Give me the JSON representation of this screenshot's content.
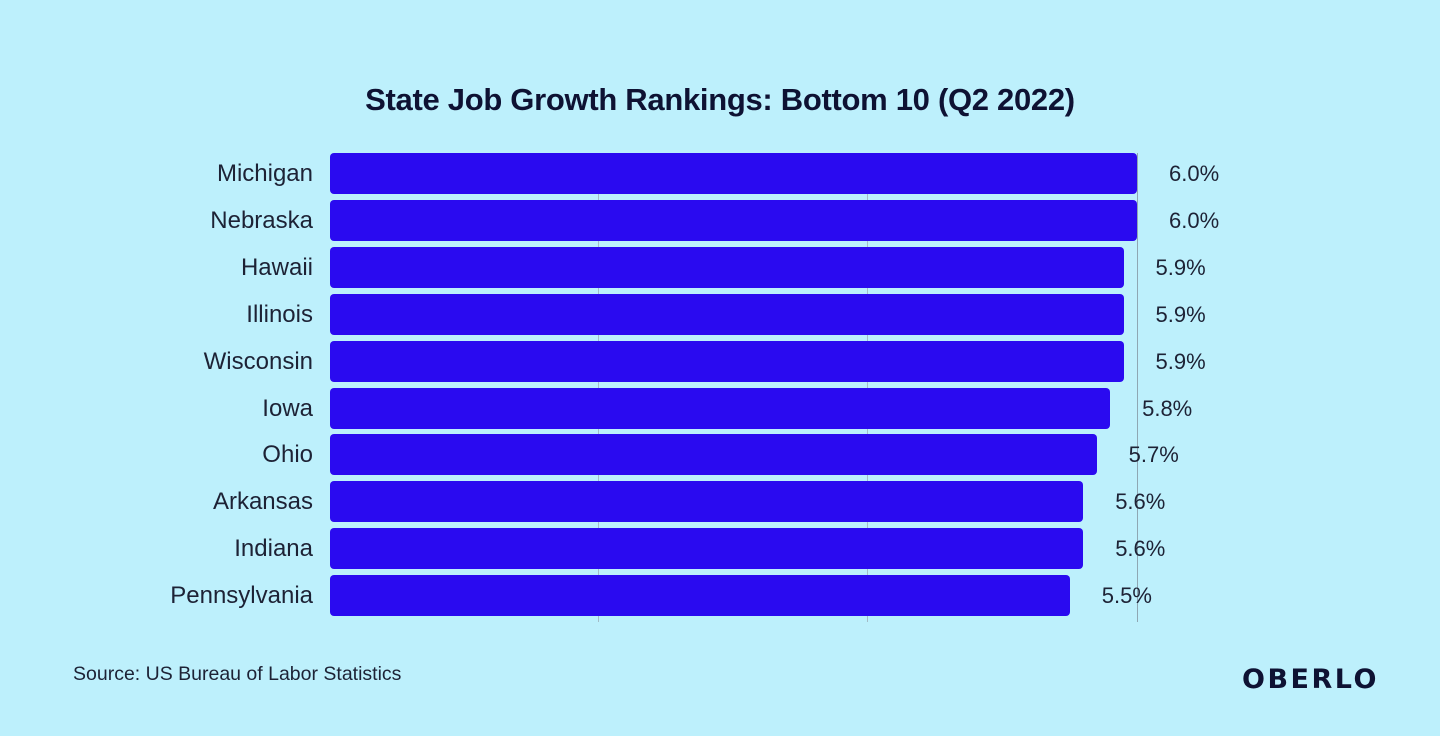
{
  "chart_data": {
    "type": "bar",
    "orientation": "horizontal",
    "title": "State Job Growth Rankings: Bottom 10 (Q2 2022)",
    "categories": [
      "Michigan",
      "Nebraska",
      "Hawaii",
      "Illinois",
      "Wisconsin",
      "Iowa",
      "Ohio",
      "Arkansas",
      "Indiana",
      "Pennsylvania"
    ],
    "values": [
      6.0,
      6.0,
      5.9,
      5.9,
      5.9,
      5.8,
      5.7,
      5.6,
      5.6,
      5.5
    ],
    "value_labels": [
      "6.0%",
      "6.0%",
      "5.9%",
      "5.9%",
      "5.9%",
      "5.8%",
      "5.7%",
      "5.6%",
      "5.6%",
      "5.5%"
    ],
    "xlim": [
      0,
      6
    ],
    "gridlines_at": [
      2,
      4,
      6
    ],
    "grid_visible_behind_bars": true,
    "legend": "none",
    "bar_color": "#2a0af0",
    "background_color": "#bdf0fc",
    "title_color": "#0e1233",
    "label_color": "#1d2235"
  },
  "footer": {
    "source": "Source: US Bureau of Labor Statistics",
    "brand": "OBERLO"
  }
}
